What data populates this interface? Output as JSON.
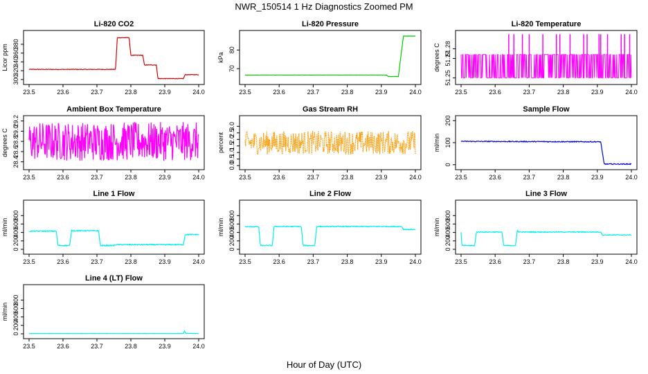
{
  "figure": {
    "title": "NWR_150514  1 Hz Diagnostics Zoomed PM",
    "xlabel": "Hour of Day (UTC)"
  },
  "chart_data": [
    {
      "type": "line",
      "title": "Li-820 CO2",
      "ylabel": "Licor ppm",
      "color": "#d40000",
      "xlim": [
        23.5,
        24.0
      ],
      "ylim": [
        295,
        405
      ],
      "xticks": [
        "23.5",
        "23.6",
        "23.7",
        "23.8",
        "23.9",
        "24.0"
      ],
      "yticks": [
        "300",
        "320",
        "340",
        "360",
        "380"
      ],
      "segments": [
        [
          23.5,
          323
        ],
        [
          23.755,
          323
        ],
        [
          23.76,
          395
        ],
        [
          23.795,
          395
        ],
        [
          23.8,
          355
        ],
        [
          23.835,
          355
        ],
        [
          23.84,
          333
        ],
        [
          23.875,
          333
        ],
        [
          23.88,
          302
        ],
        [
          23.955,
          302
        ],
        [
          23.96,
          311
        ],
        [
          24.0,
          311
        ]
      ],
      "noise": 0.6,
      "spikes": []
    },
    {
      "type": "line",
      "title": "Li-820 Pressure",
      "ylabel": "kPa",
      "color": "#00cc00",
      "xlim": [
        23.5,
        24.0
      ],
      "ylim": [
        63,
        89
      ],
      "xticks": [
        "23.5",
        "23.6",
        "23.7",
        "23.8",
        "23.9",
        "24.0"
      ],
      "yticks": [
        "70",
        "80"
      ],
      "segments": [
        [
          23.5,
          66.6
        ],
        [
          23.915,
          66.6
        ],
        [
          23.92,
          65.8
        ],
        [
          23.95,
          65.8
        ],
        [
          23.965,
          87.5
        ],
        [
          24.0,
          87.5
        ]
      ],
      "noise": 0.05,
      "spikes": []
    },
    {
      "type": "line",
      "title": "Li-820 Temperature",
      "ylabel": "degrees C",
      "color": "#ff00ff",
      "xlim": [
        23.5,
        24.0
      ],
      "ylim": [
        51.246,
        51.296
      ],
      "xticks": [
        "23.5",
        "23.6",
        "23.7",
        "23.8",
        "23.9",
        "24.0"
      ],
      "yticks": [
        "51.25",
        "51.27",
        "51.28"
      ],
      "segments": [
        [
          23.5,
          51.27
        ],
        [
          24.0,
          51.27
        ]
      ],
      "noise": 0,
      "style": "quantized",
      "levels": [
        51.25,
        51.274
      ],
      "spike_level": 51.295,
      "spikes": [
        23.64,
        23.655,
        23.68,
        23.7,
        23.74,
        23.78,
        23.79,
        23.82,
        23.86,
        23.87,
        23.905,
        23.91,
        23.93,
        23.97,
        23.98,
        23.995
      ]
    },
    {
      "type": "line",
      "title": "Ambient Box Temperature",
      "ylabel": "degrees C",
      "color": "#ff00ff",
      "xlim": [
        23.5,
        24.0
      ],
      "ylim": [
        28.3,
        29.25
      ],
      "xticks": [
        "23.5",
        "23.6",
        "23.7",
        "23.8",
        "23.9",
        "24.0"
      ],
      "yticks": [
        "28.4",
        "28.6",
        "28.8",
        "29.0",
        "29.2"
      ],
      "segments": [
        [
          23.5,
          28.8
        ],
        [
          24.0,
          28.8
        ]
      ],
      "noise": 0.38,
      "spikes": []
    },
    {
      "type": "line",
      "title": "Gas Stream RH",
      "ylabel": "percent",
      "color": "#ff9900",
      "xlim": [
        23.5,
        24.0
      ],
      "ylim": [
        -0.1,
        3.6
      ],
      "xticks": [
        "23.5",
        "23.6",
        "23.7",
        "23.8",
        "23.9",
        "24.0"
      ],
      "yticks": [
        "0.0",
        "0.5",
        "1.0",
        "1.5",
        "2.0",
        "2.5",
        "3.0"
      ],
      "segments": [
        [
          23.5,
          1.75
        ],
        [
          24.0,
          1.75
        ]
      ],
      "noise": 0.9,
      "dotted": true,
      "spikes": []
    },
    {
      "type": "line",
      "title": "Sample Flow",
      "ylabel": "ml/min",
      "color": "#0000cc",
      "xlim": [
        23.5,
        24.0
      ],
      "ylim": [
        -10,
        210
      ],
      "xticks": [
        "23.5",
        "23.6",
        "23.7",
        "23.8",
        "23.9",
        "24.0"
      ],
      "yticks": [
        "0",
        "100",
        "200"
      ],
      "segments": [
        [
          23.5,
          106
        ],
        [
          23.91,
          104
        ],
        [
          23.92,
          3
        ],
        [
          24.0,
          3
        ]
      ],
      "noise": 2,
      "spikes": []
    },
    {
      "type": "line",
      "title": "Line 1 Flow",
      "ylabel": "ml/min",
      "color": "#00eeee",
      "xlim": [
        23.5,
        24.0
      ],
      "ylim": [
        -50,
        1100
      ],
      "xticks": [
        "23.5",
        "23.6",
        "23.7",
        "23.8",
        "23.9",
        "24.0"
      ],
      "yticks": [
        "0",
        "200",
        "400",
        "600",
        "800"
      ],
      "segments": [
        [
          23.5,
          430
        ],
        [
          23.58,
          430
        ],
        [
          23.585,
          90
        ],
        [
          23.62,
          90
        ],
        [
          23.625,
          440
        ],
        [
          23.705,
          440
        ],
        [
          23.71,
          90
        ],
        [
          23.75,
          90
        ],
        [
          23.755,
          110
        ],
        [
          23.955,
          110
        ],
        [
          23.96,
          350
        ],
        [
          24.0,
          350
        ]
      ],
      "noise": 12,
      "spikes": []
    },
    {
      "type": "line",
      "title": "Line 2 Flow",
      "ylabel": "ml/min",
      "color": "#00eeee",
      "xlim": [
        23.5,
        24.0
      ],
      "ylim": [
        -50,
        1100
      ],
      "xticks": [
        "23.5",
        "23.6",
        "23.7",
        "23.8",
        "23.9",
        "24.0"
      ],
      "yticks": [
        "0",
        "200",
        "400",
        "600",
        "800"
      ],
      "segments": [
        [
          23.5,
          535
        ],
        [
          23.54,
          535
        ],
        [
          23.545,
          90
        ],
        [
          23.58,
          90
        ],
        [
          23.585,
          540
        ],
        [
          23.665,
          540
        ],
        [
          23.67,
          90
        ],
        [
          23.705,
          90
        ],
        [
          23.71,
          540
        ],
        [
          23.96,
          540
        ],
        [
          23.965,
          470
        ],
        [
          24.0,
          470
        ]
      ],
      "noise": 10,
      "spikes": []
    },
    {
      "type": "line",
      "title": "Line 3 Flow",
      "ylabel": "ml/min",
      "color": "#00eeee",
      "xlim": [
        23.5,
        24.0
      ],
      "ylim": [
        -50,
        1100
      ],
      "xticks": [
        "23.5",
        "23.6",
        "23.7",
        "23.8",
        "23.9",
        "24.0"
      ],
      "yticks": [
        "0",
        "200",
        "400",
        "600",
        "800"
      ],
      "segments": [
        [
          23.5,
          400
        ],
        [
          23.502,
          90
        ],
        [
          23.54,
          90
        ],
        [
          23.545,
          410
        ],
        [
          23.62,
          410
        ],
        [
          23.625,
          90
        ],
        [
          23.66,
          90
        ],
        [
          23.665,
          450
        ],
        [
          23.67,
          410
        ],
        [
          23.91,
          410
        ],
        [
          23.915,
          340
        ],
        [
          24.0,
          340
        ]
      ],
      "noise": 10,
      "spikes": []
    },
    {
      "type": "line",
      "title": "Line 4 (LT) Flow",
      "ylabel": "ml/min",
      "color": "#00eeee",
      "xlim": [
        23.5,
        24.0
      ],
      "ylim": [
        -50,
        1100
      ],
      "xticks": [
        "23.5",
        "23.6",
        "23.7",
        "23.8",
        "23.9",
        "24.0"
      ],
      "yticks": [
        "0",
        "200",
        "400",
        "600",
        "800"
      ],
      "segments": [
        [
          23.5,
          5
        ],
        [
          23.955,
          5
        ],
        [
          23.958,
          70
        ],
        [
          23.962,
          10
        ],
        [
          24.0,
          5
        ]
      ],
      "noise": 2,
      "spikes": []
    }
  ]
}
